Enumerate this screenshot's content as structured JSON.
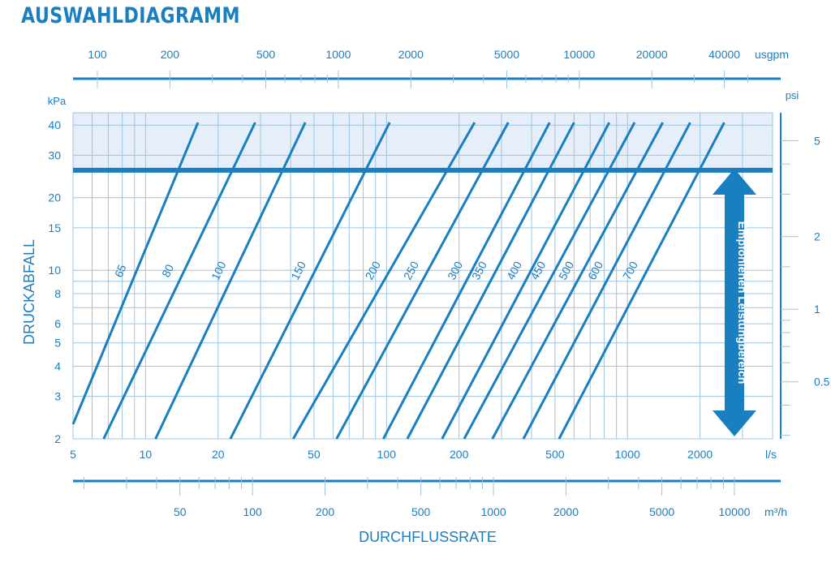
{
  "title": "AUSWAHLDIAGRAMM",
  "chart_data": {
    "type": "line",
    "scale": "log-log",
    "x_axis": {
      "label": "DURCHFLUSSRATE",
      "unit": "l/s",
      "range": [
        5,
        4000
      ],
      "ticks": [
        5,
        10,
        20,
        50,
        100,
        200,
        500,
        1000,
        2000
      ]
    },
    "y_axis": {
      "label": "DRUCKABFALL",
      "unit": "kPa",
      "range": [
        2,
        45
      ],
      "ticks": [
        2,
        3,
        4,
        5,
        6,
        8,
        10,
        15,
        20,
        30,
        40
      ]
    },
    "top_axis": {
      "unit": "usgpm",
      "ticks": [
        100,
        200,
        500,
        1000,
        2000,
        5000,
        10000,
        20000,
        40000
      ]
    },
    "bottom_axis": {
      "unit": "m³/h",
      "ticks": [
        50,
        100,
        200,
        500,
        1000,
        2000,
        5000,
        10000
      ]
    },
    "right_axis": {
      "unit": "psi",
      "ticks": [
        0.5,
        1,
        2,
        5
      ]
    },
    "series": [
      {
        "name": "65",
        "points": [
          [
            5,
            2.3
          ],
          [
            16.5,
            41
          ]
        ]
      },
      {
        "name": "80",
        "points": [
          [
            6.7,
            2
          ],
          [
            28.5,
            41
          ]
        ]
      },
      {
        "name": "100",
        "points": [
          [
            11,
            2
          ],
          [
            46,
            41
          ]
        ]
      },
      {
        "name": "150",
        "points": [
          [
            22.5,
            2
          ],
          [
            103,
            41
          ]
        ]
      },
      {
        "name": "200",
        "points": [
          [
            41,
            2
          ],
          [
            232,
            41
          ]
        ]
      },
      {
        "name": "250",
        "points": [
          [
            62,
            2
          ],
          [
            320,
            41
          ]
        ]
      },
      {
        "name": "300",
        "points": [
          [
            97,
            2
          ],
          [
            475,
            41
          ]
        ]
      },
      {
        "name": "350",
        "points": [
          [
            122,
            2
          ],
          [
            600,
            41
          ]
        ]
      },
      {
        "name": "400",
        "points": [
          [
            170,
            2
          ],
          [
            840,
            41
          ]
        ]
      },
      {
        "name": "450",
        "points": [
          [
            210,
            2
          ],
          [
            1070,
            41
          ]
        ]
      },
      {
        "name": "500",
        "points": [
          [
            275,
            2
          ],
          [
            1400,
            41
          ]
        ]
      },
      {
        "name": "600",
        "points": [
          [
            370,
            2
          ],
          [
            1820,
            41
          ]
        ]
      },
      {
        "name": "700",
        "points": [
          [
            520,
            2
          ],
          [
            2520,
            41
          ]
        ]
      }
    ],
    "recommended_range": {
      "label": "Empfohlenen Leistungbereich",
      "max_kpa": 26
    },
    "grid": true,
    "colors": {
      "line": "#1a7fc1",
      "grid": "#9cc4e2",
      "shade": "#e6eff9"
    }
  }
}
